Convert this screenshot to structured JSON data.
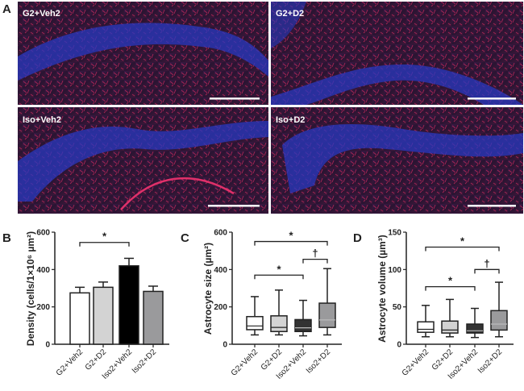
{
  "panel_a": {
    "label": "A",
    "images": [
      {
        "label": "G2+Veh2"
      },
      {
        "label": "G2+D2"
      },
      {
        "label": "Iso+Veh2"
      },
      {
        "label": "Iso+D2"
      }
    ],
    "colors": {
      "nuclei": "#2a3cc8",
      "astrocytes": "#d0205a",
      "background": "#2a1230"
    }
  },
  "chart_data": [
    {
      "panel": "B",
      "type": "bar",
      "ylabel": "Density (cells/1×10⁶ µm²)",
      "ylim": [
        0,
        600
      ],
      "yticks": [
        "0",
        "200",
        "400",
        "600"
      ],
      "categories": [
        "G2+Veh2",
        "G2+D2",
        "Iso2+Veh2",
        "Iso2+D2"
      ],
      "values": [
        275,
        305,
        420,
        283
      ],
      "errors": [
        30,
        28,
        40,
        28
      ],
      "colors": [
        "#ffffff",
        "#d3d3d3",
        "#000000",
        "#9a9a9c"
      ],
      "significance": [
        {
          "from": 0,
          "to": 2,
          "y": 545,
          "mark": "*"
        }
      ]
    },
    {
      "panel": "C",
      "type": "box",
      "ylabel": "Astrocyte size (µm²)",
      "ylim": [
        0,
        600
      ],
      "yticks": [
        "0",
        "200",
        "400",
        "600"
      ],
      "categories": [
        "G2+Veh2",
        "G2+D2",
        "Iso2+Veh2",
        "Iso2+D2"
      ],
      "boxes": [
        {
          "min": 50,
          "q1": 78,
          "median": 98,
          "q3": 148,
          "max": 255
        },
        {
          "min": 50,
          "q1": 68,
          "median": 90,
          "q3": 152,
          "max": 290
        },
        {
          "min": 45,
          "q1": 68,
          "median": 88,
          "q3": 132,
          "max": 235
        },
        {
          "min": 50,
          "q1": 90,
          "median": 130,
          "q3": 220,
          "max": 405
        }
      ],
      "colors": [
        "#ffffff",
        "#d3d3d3",
        "#333333",
        "#9a9a9c"
      ],
      "significance": [
        {
          "from": 0,
          "to": 2,
          "y": 370,
          "mark": "*"
        },
        {
          "from": 0,
          "to": 3,
          "y": 550,
          "mark": "*"
        },
        {
          "from": 2,
          "to": 3,
          "y": 455,
          "mark": "†"
        }
      ]
    },
    {
      "panel": "D",
      "type": "box",
      "ylabel": "Astrocyte volume (µm³)",
      "ylim": [
        0,
        150
      ],
      "yticks": [
        "0",
        "50",
        "100",
        "150"
      ],
      "categories": [
        "G2+Veh2",
        "G2+D2",
        "Iso2+Veh2",
        "Iso2+D2"
      ],
      "boxes": [
        {
          "min": 10,
          "q1": 16,
          "median": 20,
          "q3": 30,
          "max": 52
        },
        {
          "min": 10,
          "q1": 15,
          "median": 19,
          "q3": 31,
          "max": 60
        },
        {
          "min": 9,
          "q1": 15,
          "median": 18,
          "q3": 27,
          "max": 48
        },
        {
          "min": 10,
          "q1": 19,
          "median": 27,
          "q3": 45,
          "max": 83
        }
      ],
      "colors": [
        "#ffffff",
        "#d3d3d3",
        "#333333",
        "#9a9a9c"
      ],
      "significance": [
        {
          "from": 0,
          "to": 2,
          "y": 77,
          "mark": "*"
        },
        {
          "from": 0,
          "to": 3,
          "y": 130,
          "mark": "*"
        },
        {
          "from": 2,
          "to": 3,
          "y": 100,
          "mark": "†"
        }
      ]
    }
  ]
}
